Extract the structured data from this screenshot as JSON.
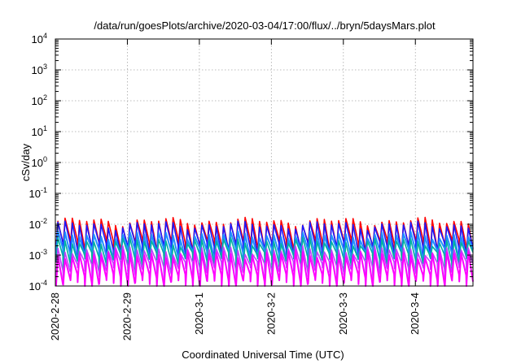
{
  "chart_data": {
    "type": "line",
    "title": "/data/run/goesPlots/archive/2020-03-04/17:00/flux/../bryn/5daysMars.plot",
    "xlabel": "Coordinated Universal Time (UTC)",
    "ylabel": "cSv/day",
    "y_scale": "log",
    "ylim": [
      0.0001,
      10000
    ],
    "y_ticks": [
      {
        "value": 0.0001,
        "base": "10",
        "exp": "-4"
      },
      {
        "value": 0.001,
        "base": "10",
        "exp": "-3"
      },
      {
        "value": 0.01,
        "base": "10",
        "exp": "-2"
      },
      {
        "value": 0.1,
        "base": "10",
        "exp": "-1"
      },
      {
        "value": 1,
        "base": "10",
        "exp": "0"
      },
      {
        "value": 10,
        "base": "10",
        "exp": "1"
      },
      {
        "value": 100,
        "base": "10",
        "exp": "2"
      },
      {
        "value": 1000,
        "base": "10",
        "exp": "3"
      },
      {
        "value": 10000,
        "base": "10",
        "exp": "4"
      }
    ],
    "x_tick_labels": [
      "2020-2-28",
      "2020-2-29",
      "2020-3-1",
      "2020-3-2",
      "2020-3-3",
      "2020-3-4"
    ],
    "xlim_days": [
      0,
      5.8
    ],
    "grid": true,
    "series": [
      {
        "color": "#ff0000",
        "lw": 1.6,
        "level": 0.0125,
        "depth": 0.0016
      },
      {
        "color": "#1a1aff",
        "lw": 1.6,
        "level": 0.0095,
        "depth": 0.0012
      },
      {
        "color": "#2090ff",
        "lw": 2.0,
        "level": 0.0045,
        "depth": 0.00075
      },
      {
        "color": "#00b0a0",
        "lw": 1.6,
        "level": 0.0028,
        "depth": 0.00055
      },
      {
        "color": "#c040ff",
        "lw": 1.6,
        "level": 0.0015,
        "depth": 0.00028
      },
      {
        "color": "#ff00ff",
        "lw": 2.0,
        "level": 0.0011,
        "depth": 0.00011
      }
    ]
  }
}
